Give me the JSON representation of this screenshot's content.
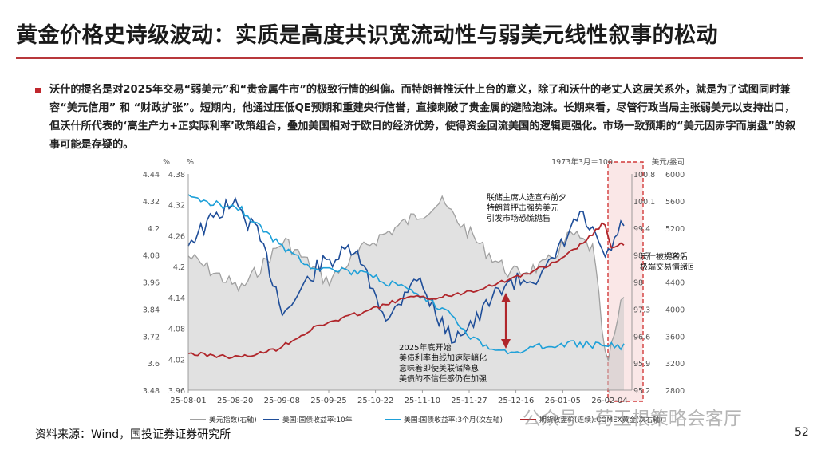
{
  "title": "黄金价格史诗级波动：实质是高度共识宽流动性与弱美元线性叙事的松动",
  "body": {
    "paragraph": "沃什的提名是对2025年交易“弱美元”和“贵金属牛市”的极致行情的纠偏。而特朗普推沃什上台的意义，除了和沃什的老丈人这层关系外，就是为了试图同时兼容“美元信用” 和 “财政扩张”。短期内，他通过压低QE预期和重建央行信誉，直接刺破了贵金属的避险泡沫。长期来看，尽管行政当局主张弱美元以支持出口，但沃什所代表的‘高生产力+正实际利率’政策组合，叠加美国相对于欧日的经济优势，使得资金回流美国的逻辑更强化。市场一致预期的“美元因赤字而崩盘”的叙事可能是存疑的。"
  },
  "source": "资料来源：Wind，国投证券证券研究所",
  "page_number": "52",
  "watermark": "公众号 · 荀玉根策略会客厅",
  "chart_data": {
    "type": "line",
    "x_ticks": [
      "25-08-01",
      "25-08-20",
      "25-09-08",
      "25-09-25",
      "25-10-22",
      "25-11-10",
      "25-11-27",
      "25-12-16",
      "26-01-05",
      "26-02-04"
    ],
    "axes": {
      "left_outer": {
        "unit": "%",
        "ticks": [
          3.48,
          3.6,
          3.72,
          3.84,
          3.96,
          4.08,
          4.2,
          4.32,
          4.44
        ]
      },
      "left_inner": {
        "unit": "%",
        "ticks": [
          3.96,
          4.02,
          4.08,
          4.14,
          4.2,
          4.26,
          4.32,
          4.38
        ]
      },
      "right_inner": {
        "unit": "1973年3月＝100",
        "ticks": [
          95.2,
          95.9,
          96.6,
          97.3,
          98,
          98.7,
          99.4,
          100.1,
          100.8
        ]
      },
      "right_outer": {
        "unit": "美元/盎司",
        "ticks": [
          2800,
          3200,
          3600,
          4000,
          4400,
          4800,
          5200,
          5600,
          6000
        ]
      }
    },
    "series": [
      {
        "name": "美元指数(右轴)",
        "color": "#a0a0a0",
        "axis": "right_inner",
        "area": true
      },
      {
        "name": "美国:国债收益率:10年",
        "color": "#1f4e99",
        "axis": "left_inner"
      },
      {
        "name": "美国:国债收益率:3个月(次左轴)",
        "color": "#1ea0d8",
        "axis": "left_outer"
      },
      {
        "name": "期货收盘价(连续):COMEX黄金(次右轴)",
        "color": "#b0262b",
        "axis": "right_outer"
      }
    ],
    "annotations": [
      {
        "text": [
          "联储主席人选宣布前夕",
          "特朗普抨击强势美元",
          "引发市场恐慌抛售"
        ]
      },
      {
        "text": [
          "2025年底开始",
          "美债利率曲线加速陡峭化",
          "意味着即使美联储降息",
          "美债的不信任感仍在加强"
        ]
      },
      {
        "text": [
          "沃什被提名后",
          "极端交易情绪回摆"
        ]
      }
    ]
  }
}
